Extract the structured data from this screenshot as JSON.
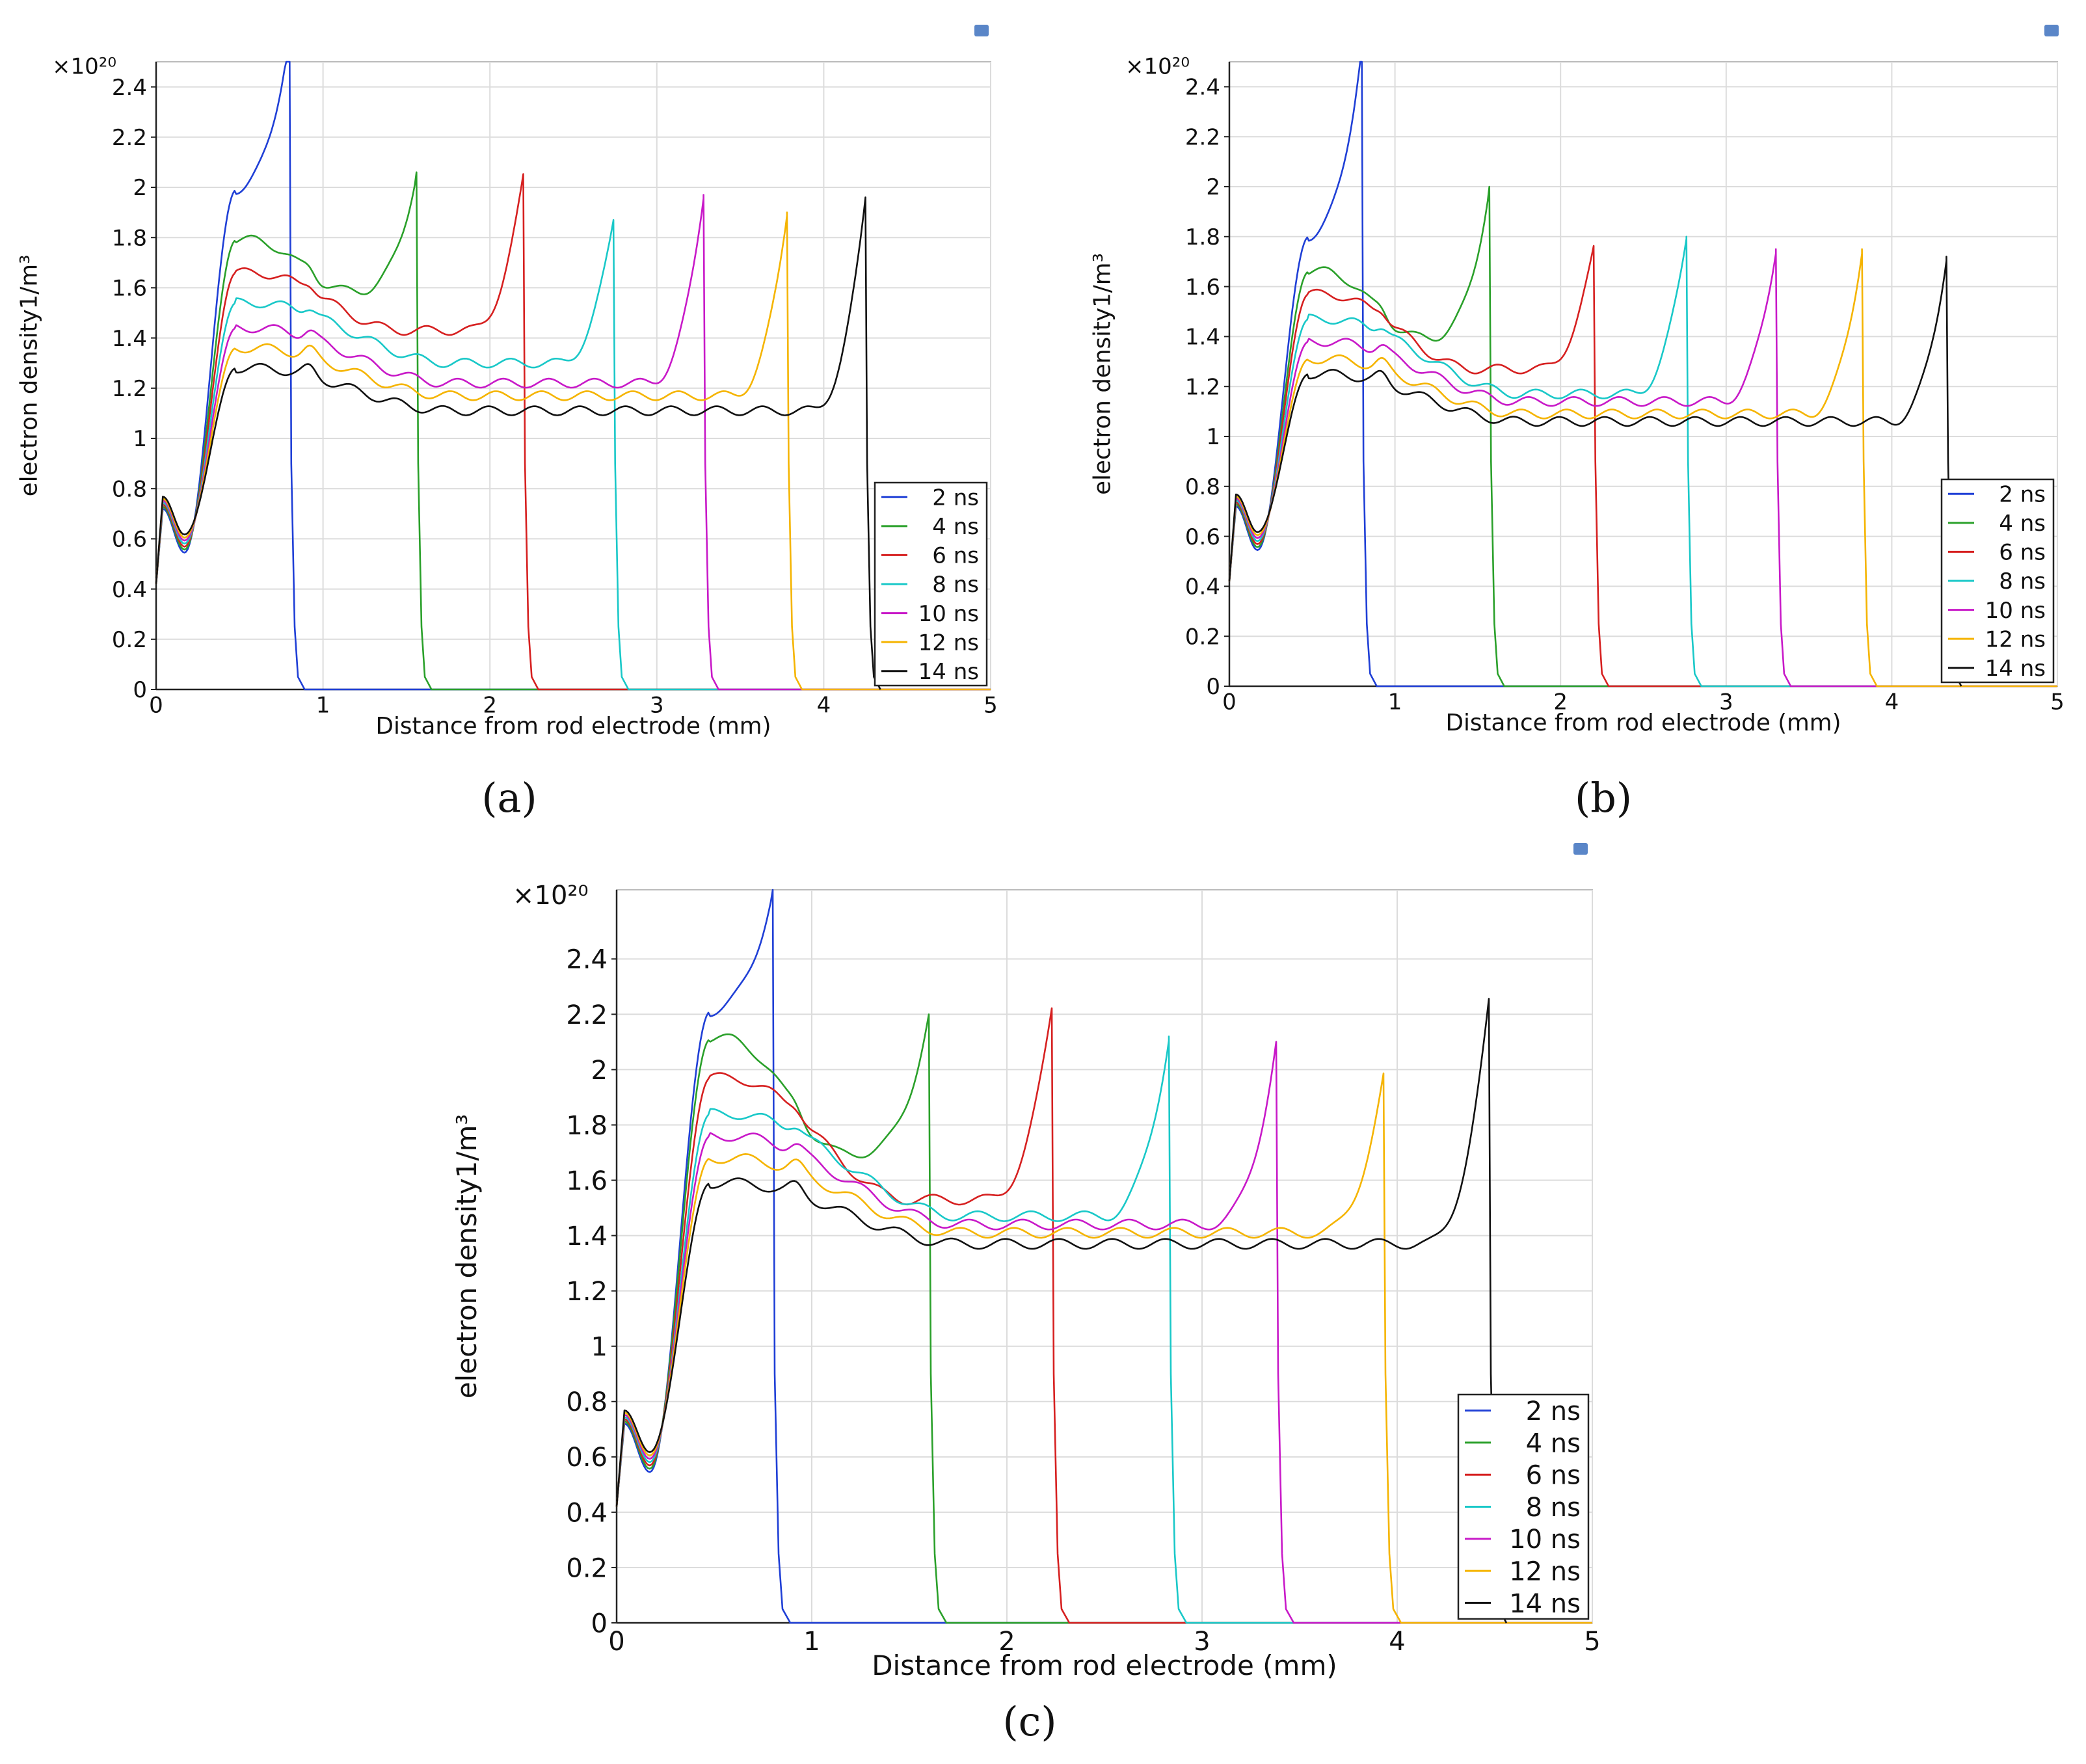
{
  "figure": {
    "panels": [
      "(a)",
      "(b)",
      "(c)"
    ]
  },
  "chart_data": [
    {
      "type": "line",
      "panel": "(a)",
      "xlabel": "Distance from rod electrode (mm)",
      "ylabel": "electron density1/m³",
      "multiplier": "×10²⁰",
      "xlim": [
        0,
        5
      ],
      "ylim": [
        0,
        2.5
      ],
      "xticks": [
        0,
        1,
        2,
        3,
        4,
        5
      ],
      "yticks": [
        0,
        0.2,
        0.4,
        0.6,
        0.8,
        1,
        1.2,
        1.4,
        1.6,
        1.8,
        2,
        2.2,
        2.4
      ],
      "legend_position": "bottom-right",
      "series": [
        {
          "name": "2 ns",
          "color": "#1f3fd6",
          "plateau": 1.99,
          "peak": 2.62,
          "front": 0.8
        },
        {
          "name": "4 ns",
          "color": "#2aa02a",
          "plateau": 1.79,
          "mid": 1.59,
          "peak": 2.06,
          "front": 1.56
        },
        {
          "name": "6 ns",
          "color": "#d62020",
          "plateau": 1.66,
          "mid": 1.43,
          "peak": 2.04,
          "front": 2.2
        },
        {
          "name": "8 ns",
          "color": "#19c8c8",
          "plateau": 1.54,
          "mid": 1.3,
          "peak": 1.87,
          "front": 2.74
        },
        {
          "name": "10 ns",
          "color": "#c819c8",
          "plateau": 1.44,
          "mid": 1.22,
          "peak": 1.97,
          "front": 3.28
        },
        {
          "name": "12 ns",
          "color": "#f5b400",
          "plateau": 1.36,
          "mid": 1.17,
          "peak": 1.9,
          "front": 3.78
        },
        {
          "name": "14 ns",
          "color": "#111111",
          "plateau": 1.28,
          "mid": 1.11,
          "peak": 1.96,
          "front": 4.25
        }
      ]
    },
    {
      "type": "line",
      "panel": "(b)",
      "xlabel": "Distance from rod electrode (mm)",
      "ylabel": "electron density1/m³",
      "multiplier": "×10²⁰",
      "xlim": [
        0,
        5
      ],
      "ylim": [
        0,
        2.5
      ],
      "xticks": [
        0,
        1,
        2,
        3,
        4,
        5
      ],
      "yticks": [
        0,
        0.2,
        0.4,
        0.6,
        0.8,
        1,
        1.2,
        1.4,
        1.6,
        1.8,
        2,
        2.2,
        2.4
      ],
      "legend_position": "bottom-right",
      "series": [
        {
          "name": "2 ns",
          "color": "#1f3fd6",
          "plateau": 1.8,
          "peak": 2.57,
          "front": 0.8
        },
        {
          "name": "4 ns",
          "color": "#2aa02a",
          "plateau": 1.66,
          "mid": 1.4,
          "peak": 2.0,
          "front": 1.57
        },
        {
          "name": "6 ns",
          "color": "#d62020",
          "plateau": 1.57,
          "mid": 1.27,
          "peak": 1.75,
          "front": 2.2
        },
        {
          "name": "8 ns",
          "color": "#19c8c8",
          "plateau": 1.47,
          "mid": 1.17,
          "peak": 1.8,
          "front": 2.76
        },
        {
          "name": "10 ns",
          "color": "#c819c8",
          "plateau": 1.38,
          "mid": 1.14,
          "peak": 1.75,
          "front": 3.3
        },
        {
          "name": "12 ns",
          "color": "#f5b400",
          "plateau": 1.31,
          "mid": 1.09,
          "peak": 1.75,
          "front": 3.82
        },
        {
          "name": "14 ns",
          "color": "#111111",
          "plateau": 1.25,
          "mid": 1.06,
          "peak": 1.72,
          "front": 4.33
        }
      ]
    },
    {
      "type": "line",
      "panel": "(c)",
      "xlabel": "Distance from rod electrode (mm)",
      "ylabel": "electron density1/m³",
      "multiplier": "×10²⁰",
      "xlim": [
        0,
        5
      ],
      "ylim": [
        0,
        2.65
      ],
      "xticks": [
        0,
        1,
        2,
        3,
        4,
        5
      ],
      "yticks": [
        0,
        0.2,
        0.4,
        0.6,
        0.8,
        1,
        1.2,
        1.4,
        1.6,
        1.8,
        2,
        2.2,
        2.4
      ],
      "legend_position": "bottom-right",
      "series": [
        {
          "name": "2 ns",
          "color": "#1f3fd6",
          "plateau": 2.21,
          "peak": 2.65,
          "front": 0.8
        },
        {
          "name": "4 ns",
          "color": "#2aa02a",
          "plateau": 2.11,
          "mid": 1.7,
          "peak": 2.2,
          "front": 1.6
        },
        {
          "name": "6 ns",
          "color": "#d62020",
          "plateau": 1.97,
          "mid": 1.53,
          "peak": 2.22,
          "front": 2.23
        },
        {
          "name": "8 ns",
          "color": "#19c8c8",
          "plateau": 1.84,
          "mid": 1.47,
          "peak": 2.12,
          "front": 2.83
        },
        {
          "name": "10 ns",
          "color": "#c819c8",
          "plateau": 1.76,
          "mid": 1.44,
          "peak": 2.1,
          "front": 3.38
        },
        {
          "name": "12 ns",
          "color": "#f5b400",
          "plateau": 1.68,
          "mid": 1.41,
          "peak": 1.97,
          "front": 3.93
        },
        {
          "name": "14 ns",
          "color": "#111111",
          "plateau": 1.59,
          "mid": 1.37,
          "peak": 2.24,
          "front": 4.47
        }
      ]
    }
  ]
}
